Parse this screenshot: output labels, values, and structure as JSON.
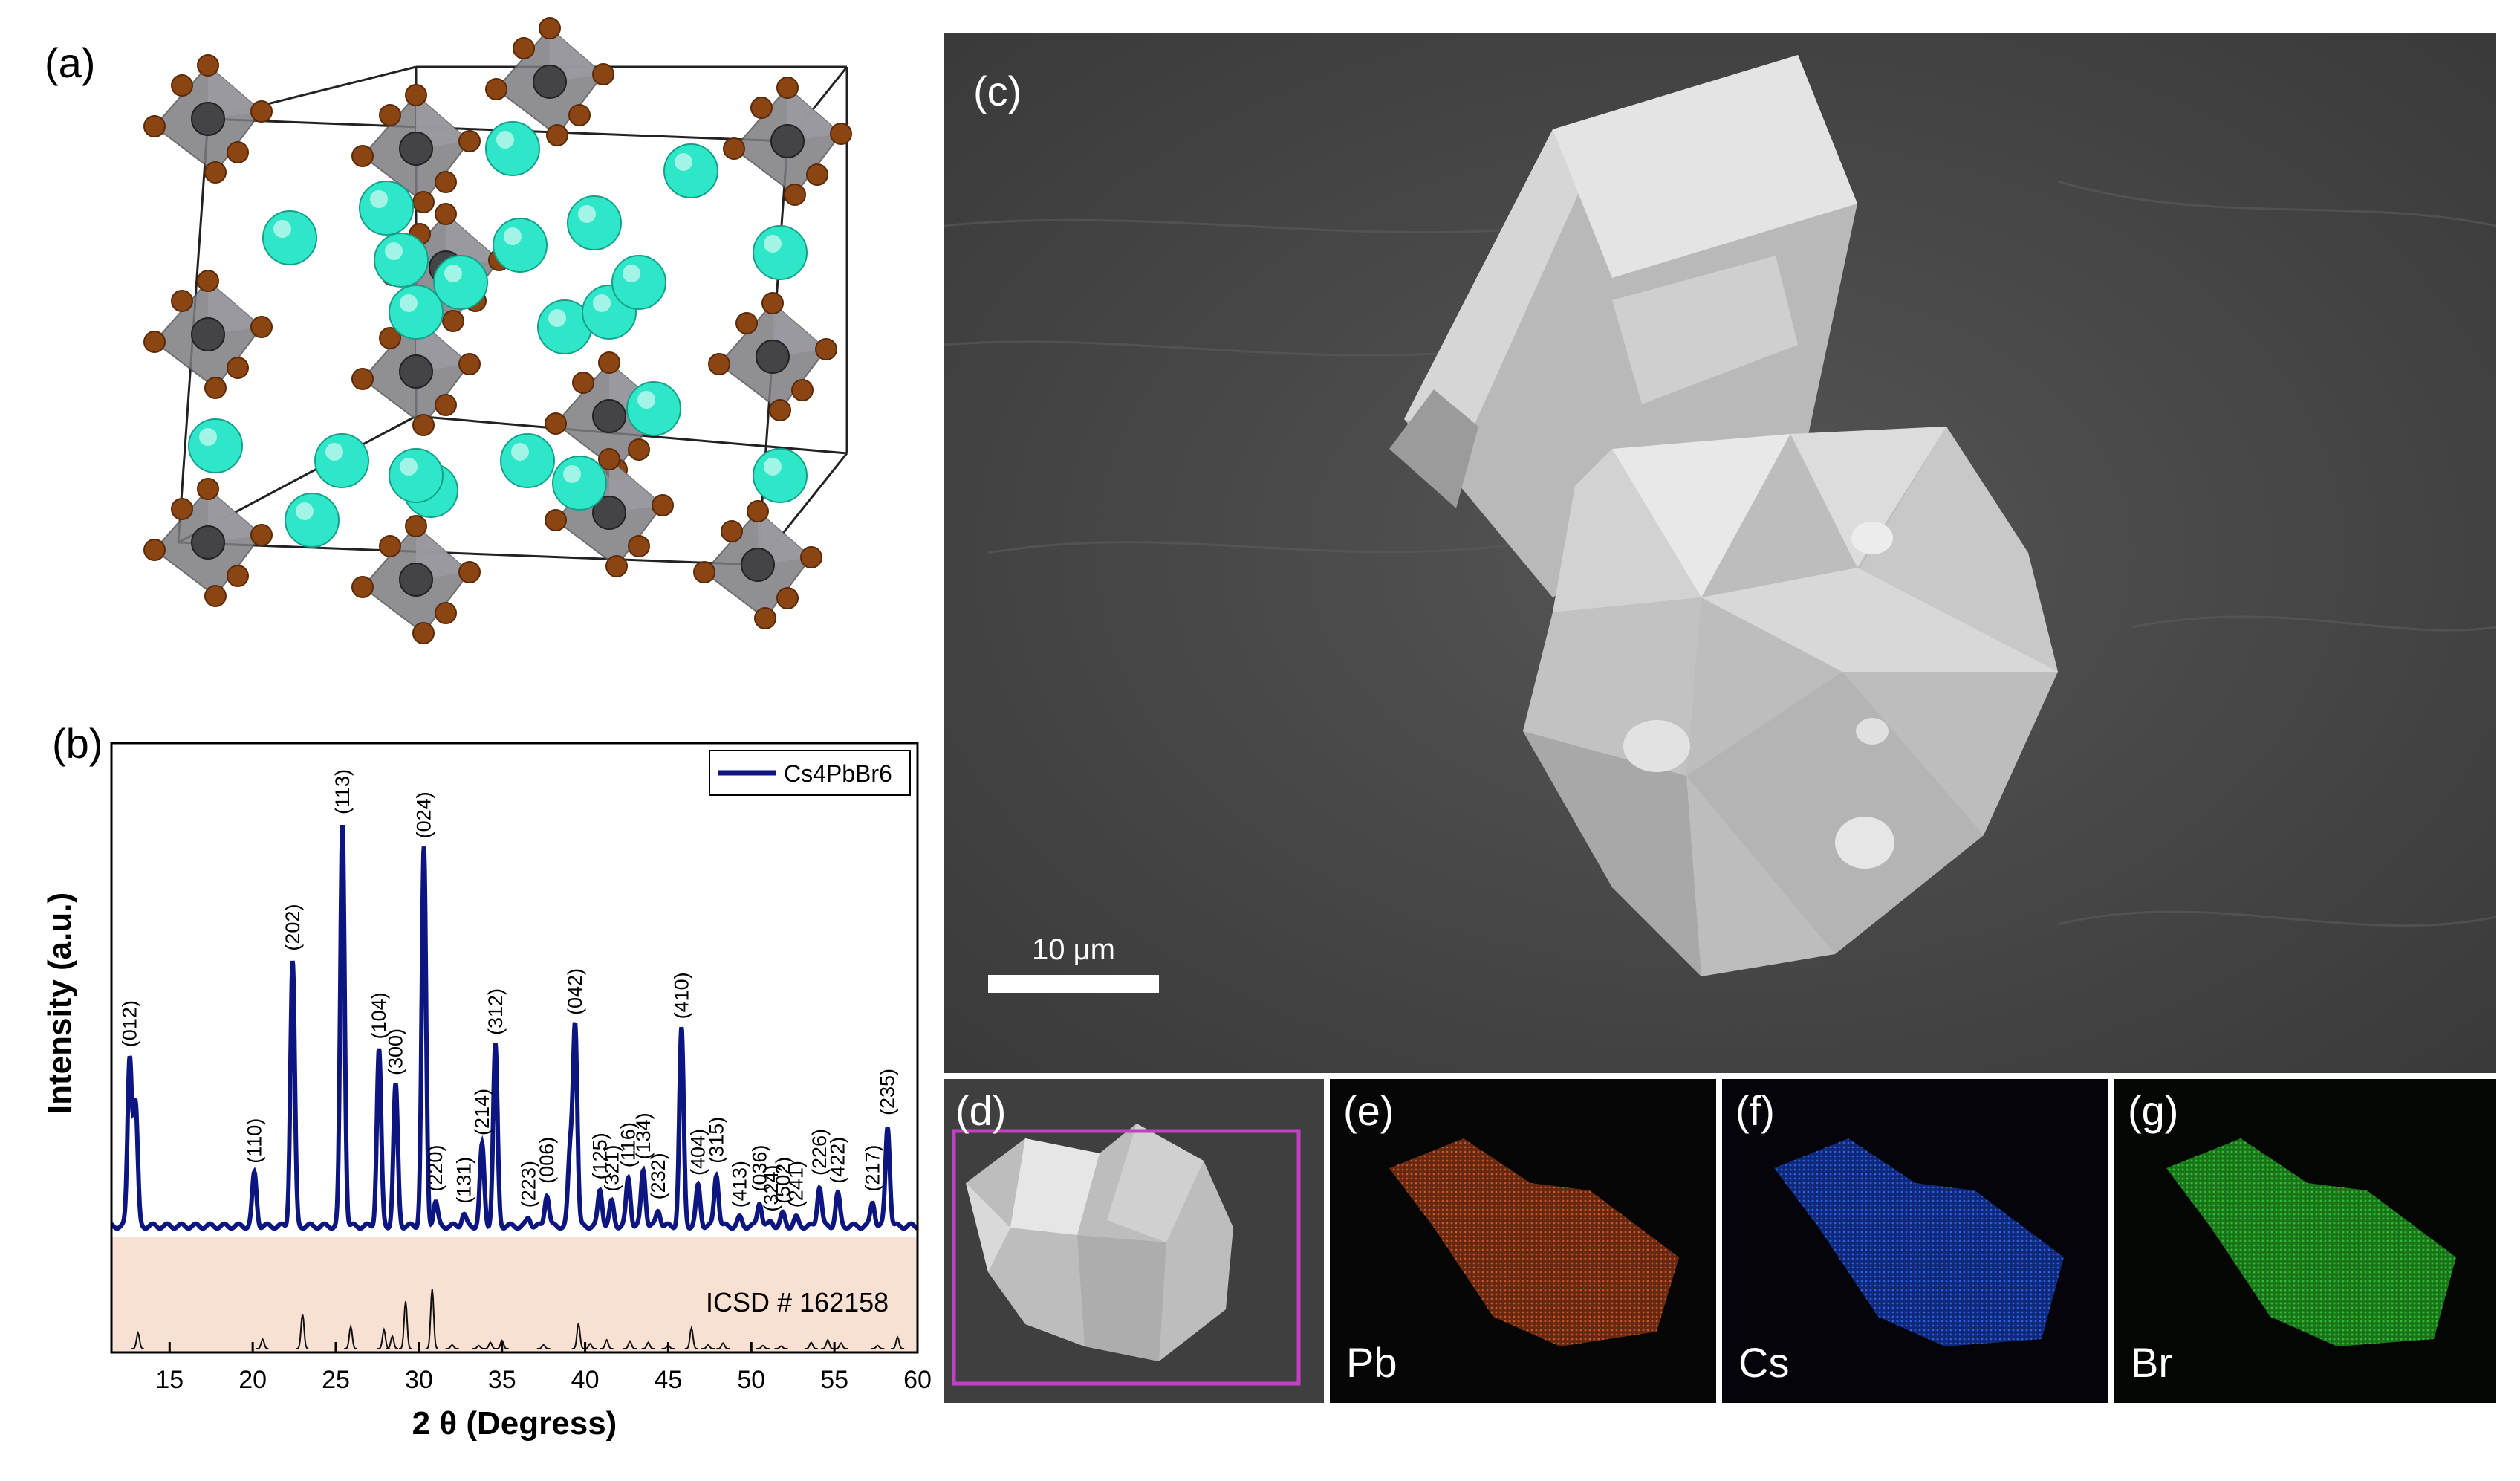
{
  "panels": {
    "a": {
      "label": "(a)"
    },
    "b": {
      "label": "(b)"
    },
    "c": {
      "label": "(c)",
      "scale_bar": "10 μm"
    },
    "d": {
      "label": "(d)"
    },
    "e": {
      "label": "(e)",
      "element": "Pb"
    },
    "f": {
      "label": "(f)",
      "element": "Cs"
    },
    "g": {
      "label": "(g)",
      "element": "Br"
    }
  },
  "chart_data": {
    "type": "line",
    "xlabel": "2 θ (Degress)",
    "ylabel": "Intensity (a.u.)",
    "xlim": [
      11.5,
      60
    ],
    "xticks": [
      15,
      20,
      25,
      30,
      35,
      40,
      45,
      50,
      55,
      60
    ],
    "legend": {
      "label": "Cs4PbBr6",
      "position": "top-right"
    },
    "reference_label": "ICSD # 162158",
    "series_color": "#0d1680",
    "reference_band_color": "#f8e1d3",
    "peaks": [
      {
        "x": 12.6,
        "y": 0.42,
        "label": "(012)"
      },
      {
        "x": 12.95,
        "y": 0.3,
        "label": ""
      },
      {
        "x": 20.1,
        "y": 0.13,
        "label": "(110)"
      },
      {
        "x": 22.4,
        "y": 0.66,
        "label": "(202)"
      },
      {
        "x": 25.4,
        "y": 1.0,
        "label": "(113)"
      },
      {
        "x": 27.6,
        "y": 0.44,
        "label": "(104)"
      },
      {
        "x": 28.6,
        "y": 0.35,
        "label": "(300)"
      },
      {
        "x": 30.3,
        "y": 0.94,
        "label": "(024)"
      },
      {
        "x": 31.0,
        "y": 0.06,
        "label": "(220)"
      },
      {
        "x": 32.7,
        "y": 0.03,
        "label": "(131)"
      },
      {
        "x": 33.8,
        "y": 0.2,
        "label": "(214)"
      },
      {
        "x": 34.6,
        "y": 0.45,
        "label": "(312)"
      },
      {
        "x": 36.6,
        "y": 0.02,
        "label": "(223)"
      },
      {
        "x": 37.7,
        "y": 0.08,
        "label": "(006)"
      },
      {
        "x": 39.1,
        "y": 0.18,
        "label": ""
      },
      {
        "x": 39.4,
        "y": 0.5,
        "label": "(042)"
      },
      {
        "x": 40.9,
        "y": 0.09,
        "label": "(125)"
      },
      {
        "x": 41.6,
        "y": 0.06,
        "label": "(321)"
      },
      {
        "x": 42.6,
        "y": 0.12,
        "label": "(116)"
      },
      {
        "x": 43.5,
        "y": 0.14,
        "label": "(134)"
      },
      {
        "x": 44.4,
        "y": 0.04,
        "label": "(232)"
      },
      {
        "x": 45.8,
        "y": 0.49,
        "label": "(410)"
      },
      {
        "x": 46.8,
        "y": 0.1,
        "label": "(404)"
      },
      {
        "x": 47.9,
        "y": 0.13,
        "label": "(315)"
      },
      {
        "x": 49.3,
        "y": 0.02,
        "label": "(413)"
      },
      {
        "x": 50.5,
        "y": 0.06,
        "label": "(036)"
      },
      {
        "x": 51.9,
        "y": 0.03,
        "label": "(502)"
      },
      {
        "x": 52.7,
        "y": 0.02,
        "label": "(241)"
      },
      {
        "x": 51.2,
        "y": 0.01,
        "label": "(324)"
      },
      {
        "x": 54.1,
        "y": 0.1,
        "label": "(226)"
      },
      {
        "x": 55.2,
        "y": 0.08,
        "label": "(422)"
      },
      {
        "x": 57.3,
        "y": 0.06,
        "label": "(217)"
      },
      {
        "x": 58.2,
        "y": 0.25,
        "label": "(235)"
      }
    ],
    "reference_peaks": [
      {
        "x": 13.1,
        "y": 0.25
      },
      {
        "x": 20.6,
        "y": 0.15
      },
      {
        "x": 23.0,
        "y": 0.55
      },
      {
        "x": 25.9,
        "y": 0.35
      },
      {
        "x": 27.9,
        "y": 0.3
      },
      {
        "x": 28.4,
        "y": 0.2
      },
      {
        "x": 29.2,
        "y": 0.75
      },
      {
        "x": 30.8,
        "y": 0.95
      },
      {
        "x": 32.0,
        "y": 0.06
      },
      {
        "x": 33.6,
        "y": 0.05
      },
      {
        "x": 34.3,
        "y": 0.1
      },
      {
        "x": 35.0,
        "y": 0.13
      },
      {
        "x": 37.5,
        "y": 0.06
      },
      {
        "x": 39.6,
        "y": 0.4
      },
      {
        "x": 40.3,
        "y": 0.08
      },
      {
        "x": 41.3,
        "y": 0.14
      },
      {
        "x": 42.7,
        "y": 0.12
      },
      {
        "x": 43.8,
        "y": 0.1
      },
      {
        "x": 45.0,
        "y": 0.05
      },
      {
        "x": 46.4,
        "y": 0.33
      },
      {
        "x": 47.4,
        "y": 0.06
      },
      {
        "x": 48.3,
        "y": 0.09
      },
      {
        "x": 50.7,
        "y": 0.05
      },
      {
        "x": 51.8,
        "y": 0.04
      },
      {
        "x": 53.6,
        "y": 0.1
      },
      {
        "x": 54.6,
        "y": 0.14
      },
      {
        "x": 55.4,
        "y": 0.09
      },
      {
        "x": 57.6,
        "y": 0.05
      },
      {
        "x": 58.8,
        "y": 0.18
      }
    ],
    "colors": {
      "cs": "#2ee6c8",
      "pb": "#444446",
      "br": "#8b4513",
      "octahedron": "#7c7c82"
    }
  }
}
